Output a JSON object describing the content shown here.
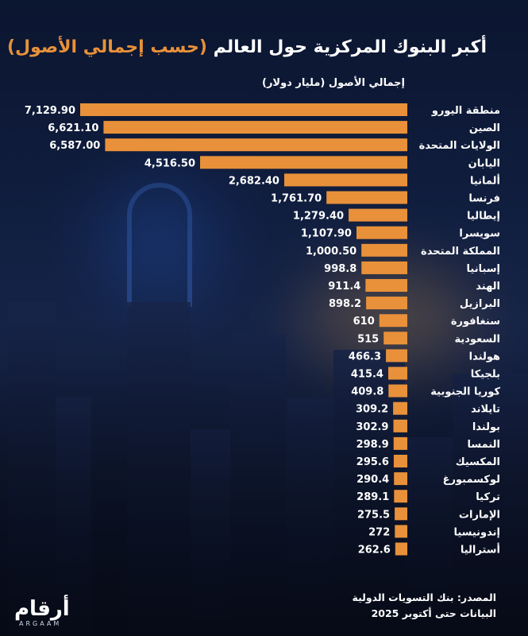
{
  "title": {
    "main": "أكبر البنوك المركزية حول العالم",
    "accent": "(حسب إجمالي الأصول)"
  },
  "source": {
    "line1": "المصدر: بنك التسويات الدولية",
    "line2": "البيانات حتى أكتوبر 2025"
  },
  "logo": {
    "arabic": "أرقام",
    "latin": "ARGAAM"
  },
  "colors": {
    "bar": "#e8913a",
    "text": "#ffffff"
  },
  "chart_data": {
    "type": "bar",
    "orientation": "horizontal",
    "ylabel": "إجمالي الأصول (مليار دولار)",
    "categories": [
      "منطقة اليورو",
      "الصين",
      "الولايات المتحدة",
      "اليابان",
      "ألمانيا",
      "فرنسا",
      "إيطاليا",
      "سويسرا",
      "المملكة المتحدة",
      "إسبانيا",
      "الهند",
      "البرازيل",
      "سنغافورة",
      "السعودية",
      "هولندا",
      "بلجيكا",
      "كوريا الجنوبية",
      "تايلاند",
      "بولندا",
      "النمسا",
      "المكسيك",
      "لوكسمبورغ",
      "تركيا",
      "الإمارات",
      "إندونيسيا",
      "أستراليا"
    ],
    "values": [
      7129.9,
      6621.1,
      6587.0,
      4516.5,
      2682.4,
      1761.7,
      1279.4,
      1107.9,
      1000.5,
      998.8,
      911.4,
      898.2,
      610,
      515,
      466.3,
      415.4,
      409.8,
      309.2,
      302.9,
      298.9,
      295.6,
      290.4,
      289.1,
      275.5,
      272,
      262.6
    ],
    "labels": [
      "7,129.90",
      "6,621.10",
      "6,587.00",
      "4,516.50",
      "2,682.40",
      "1,761.70",
      "1,279.40",
      "1,107.90",
      "1,000.50",
      "998.8",
      "911.4",
      "898.2",
      "610",
      "515",
      "466.3",
      "415.4",
      "409.8",
      "309.2",
      "302.9",
      "298.9",
      "295.6",
      "290.4",
      "289.1",
      "275.5",
      "272",
      "262.6"
    ]
  }
}
